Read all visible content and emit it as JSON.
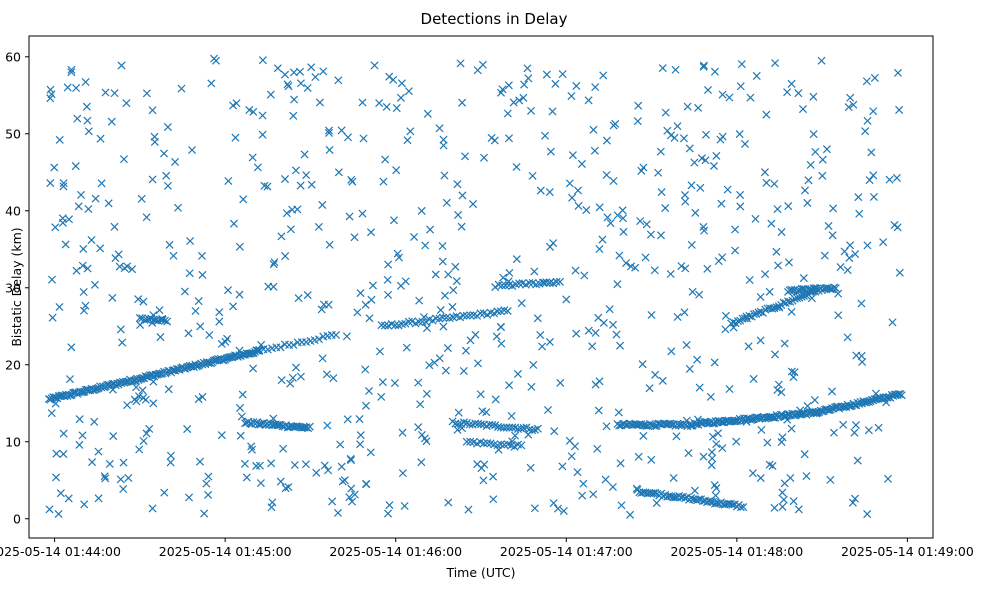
{
  "chart_data": {
    "type": "scatter",
    "title": "Detections in Delay",
    "xlabel": "Time (UTC)",
    "ylabel": "Bistatic Delay (km)",
    "x_ticks": [
      "2025-05-14 01:44:00",
      "2025-05-14 01:45:00",
      "2025-05-14 01:46:00",
      "2025-05-14 01:47:00",
      "2025-05-14 01:48:00",
      "2025-05-14 01:49:00"
    ],
    "y_ticks": [
      "0",
      "10",
      "20",
      "30",
      "40",
      "50",
      "60"
    ],
    "xlim": [
      "2025-05-14 01:43:51",
      "2025-05-14 01:49:09"
    ],
    "ylim": [
      -2.5,
      62.7
    ],
    "grid": false,
    "marker": "x",
    "color": "#1f77b4",
    "tracks": [
      {
        "from": [
          "2025-05-14 01:43:58",
          15.5
        ],
        "to": [
          "2025-05-14 01:45:12",
          21.8
        ],
        "step_s": 0.5
      },
      {
        "from": [
          "2025-05-14 01:45:12",
          21.8
        ],
        "to": [
          "2025-05-14 01:45:40",
          24.0
        ],
        "step_s": 1.5
      },
      {
        "from": [
          "2025-05-14 01:45:07",
          12.5
        ],
        "to": [
          "2025-05-14 01:45:30",
          11.8
        ],
        "step_s": 0.6
      },
      {
        "from": [
          "2025-05-14 01:45:55",
          25.0
        ],
        "to": [
          "2025-05-14 01:46:40",
          27.0
        ],
        "step_s": 1.2
      },
      {
        "from": [
          "2025-05-14 01:46:20",
          12.5
        ],
        "to": [
          "2025-05-14 01:46:50",
          11.6
        ],
        "step_s": 1.0
      },
      {
        "from": [
          "2025-05-14 01:46:25",
          10.0
        ],
        "to": [
          "2025-05-14 01:46:45",
          9.4
        ],
        "step_s": 1.2
      },
      {
        "from": [
          "2025-05-14 01:47:18",
          12.2
        ],
        "to": [
          "2025-05-14 01:47:45",
          12.2
        ],
        "step_s": 0.6
      },
      {
        "from": [
          "2025-05-14 01:47:45",
          12.3
        ],
        "to": [
          "2025-05-14 01:48:28",
          13.8
        ],
        "step_s": 0.5
      },
      {
        "from": [
          "2025-05-14 01:48:28",
          13.8
        ],
        "to": [
          "2025-05-14 01:48:58",
          16.2
        ],
        "step_s": 0.5
      },
      {
        "from": [
          "2025-05-14 01:47:25",
          3.6
        ],
        "to": [
          "2025-05-14 01:48:02",
          1.6
        ],
        "step_s": 0.7
      },
      {
        "from": [
          "2025-05-14 01:47:58",
          25.3
        ],
        "to": [
          "2025-05-14 01:48:28",
          29.6
        ],
        "step_s": 0.8
      },
      {
        "from": [
          "2025-05-14 01:48:18",
          29.6
        ],
        "to": [
          "2025-05-14 01:48:35",
          29.9
        ],
        "step_s": 0.6
      },
      {
        "from": [
          "2025-05-14 01:44:30",
          26.0
        ],
        "to": [
          "2025-05-14 01:44:40",
          25.6
        ],
        "step_s": 0.8
      },
      {
        "from": [
          "2025-05-14 01:46:35",
          30.2
        ],
        "to": [
          "2025-05-14 01:46:58",
          30.8
        ],
        "step_s": 1.2
      }
    ],
    "clutter": {
      "count": 760,
      "x_range": [
        "2025-05-14 01:43:58",
        "2025-05-14 01:48:58"
      ],
      "y_range": [
        0.5,
        59.8
      ]
    }
  }
}
